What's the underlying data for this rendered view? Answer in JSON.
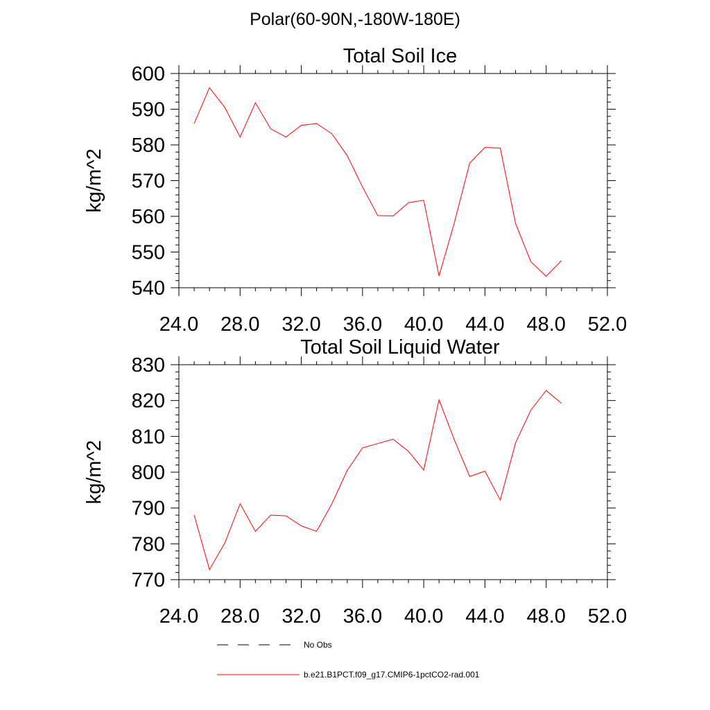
{
  "page_title": "Polar(60-90N,-180W-180E)",
  "chart_data": [
    {
      "type": "line",
      "title": "Total Soil Ice",
      "xlabel": "",
      "ylabel": "kg/m^2",
      "xlim": [
        24,
        52
      ],
      "ylim": [
        540,
        600
      ],
      "xticks": [
        "24.0",
        "28.0",
        "32.0",
        "36.0",
        "40.0",
        "44.0",
        "48.0",
        "52.0"
      ],
      "yticks": [
        "540",
        "550",
        "560",
        "570",
        "580",
        "590",
        "600"
      ],
      "x": [
        25,
        26,
        27,
        28,
        29,
        30,
        31,
        32,
        33,
        34,
        35,
        36,
        37,
        38,
        39,
        40,
        41,
        42,
        43,
        44,
        45,
        46,
        47,
        48,
        49
      ],
      "series": [
        {
          "name": "b.e21.B1PCT.f09_g17.CMIP6-1pctCO2-rad.001",
          "color": "#ff0000",
          "values": [
            586,
            596,
            590.5,
            582.2,
            591.8,
            584.5,
            582.2,
            585.5,
            586,
            583.1,
            577,
            568.2,
            560.2,
            560.1,
            563.8,
            564.5,
            543.3,
            558.2,
            574.9,
            579.3,
            579.1,
            558,
            547.3,
            543.2,
            547.6
          ]
        }
      ]
    },
    {
      "type": "line",
      "title": "Total Soil Liquid Water",
      "xlabel": "",
      "ylabel": "kg/m^2",
      "xlim": [
        24,
        52
      ],
      "ylim": [
        770,
        830
      ],
      "xticks": [
        "24.0",
        "28.0",
        "32.0",
        "36.0",
        "40.0",
        "44.0",
        "48.0",
        "52.0"
      ],
      "yticks": [
        "770",
        "780",
        "790",
        "800",
        "810",
        "820",
        "830"
      ],
      "x": [
        25,
        26,
        27,
        28,
        29,
        30,
        31,
        32,
        33,
        34,
        35,
        36,
        37,
        38,
        39,
        40,
        41,
        42,
        43,
        44,
        45,
        46,
        47,
        48,
        49
      ],
      "series": [
        {
          "name": "b.e21.B1PCT.f09_g17.CMIP6-1pctCO2-rad.001",
          "color": "#ff0000",
          "values": [
            788,
            772.8,
            780.2,
            791.2,
            783.5,
            788,
            787.8,
            785,
            783.5,
            791.2,
            800.5,
            806.8,
            808,
            809.2,
            805.8,
            800.6,
            820.2,
            809,
            798.8,
            800.3,
            792.2,
            808.2,
            817.3,
            822.8,
            819.2
          ]
        }
      ]
    }
  ],
  "legend": {
    "placement": "bottom",
    "items": [
      {
        "label": "No Obs",
        "style": "dashed",
        "color": "#000000"
      },
      {
        "label": "b.e21.B1PCT.f09_g17.CMIP6-1pctCO2-rad.001",
        "style": "solid",
        "color": "#ff0000"
      }
    ]
  }
}
